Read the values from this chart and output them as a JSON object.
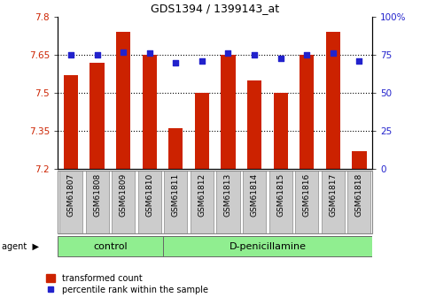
{
  "title": "GDS1394 / 1399143_at",
  "samples": [
    "GSM61807",
    "GSM61808",
    "GSM61809",
    "GSM61810",
    "GSM61811",
    "GSM61812",
    "GSM61813",
    "GSM61814",
    "GSM61815",
    "GSM61816",
    "GSM61817",
    "GSM61818"
  ],
  "bar_values": [
    7.57,
    7.62,
    7.74,
    7.65,
    7.36,
    7.5,
    7.65,
    7.55,
    7.5,
    7.65,
    7.74,
    7.27
  ],
  "dot_values": [
    75,
    75,
    77,
    76,
    70,
    71,
    76,
    75,
    73,
    75,
    76,
    71
  ],
  "bar_color": "#cc2200",
  "dot_color": "#2222cc",
  "ylim_left": [
    7.2,
    7.8
  ],
  "ylim_right": [
    0,
    100
  ],
  "yticks_left": [
    7.2,
    7.35,
    7.5,
    7.65,
    7.8
  ],
  "ytick_labels_left": [
    "7.2",
    "7.35",
    "7.5",
    "7.65",
    "7.8"
  ],
  "yticks_right": [
    0,
    25,
    50,
    75,
    100
  ],
  "ytick_labels_right": [
    "0",
    "25",
    "50",
    "75",
    "100%"
  ],
  "hlines": [
    7.35,
    7.5,
    7.65
  ],
  "groups": [
    {
      "label": "control",
      "start": 0,
      "end": 4,
      "color": "#90ee90"
    },
    {
      "label": "D-penicillamine",
      "start": 4,
      "end": 12,
      "color": "#90ee90"
    }
  ],
  "agent_label": "agent",
  "legend_bar_label": "transformed count",
  "legend_dot_label": "percentile rank within the sample",
  "bar_bottom": 7.2,
  "tick_label_color_left": "#cc2200",
  "tick_label_color_right": "#2222cc",
  "background_color": "#ffffff",
  "plot_bg_color": "#ffffff",
  "xticklabel_bg": "#cccccc",
  "group_bg": "#90ee90"
}
